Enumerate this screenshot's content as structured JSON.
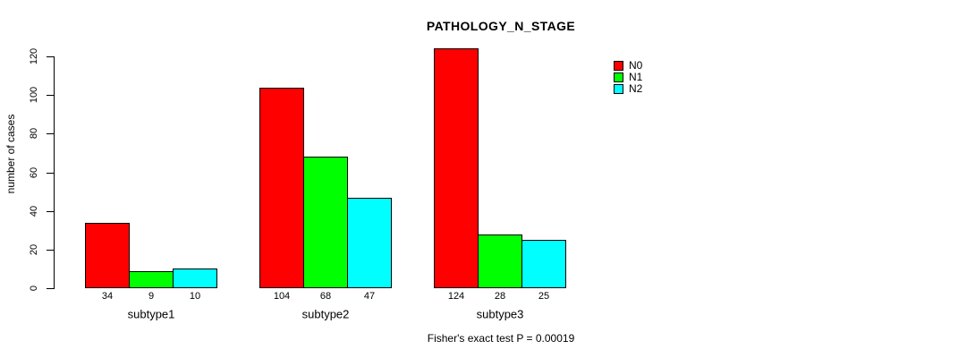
{
  "chart_data": {
    "type": "bar",
    "title": "PATHOLOGY_N_STAGE",
    "categories": [
      "subtype1",
      "subtype2",
      "subtype3"
    ],
    "series": [
      {
        "name": "N0",
        "color": "#ff0000",
        "values": [
          34,
          104,
          124
        ]
      },
      {
        "name": "N1",
        "color": "#00ff00",
        "values": [
          9,
          68,
          28
        ]
      },
      {
        "name": "N2",
        "color": "#00ffff",
        "values": [
          10,
          47,
          25
        ]
      }
    ],
    "value_labels_shown": true,
    "xlabel": "",
    "ylabel": "number of cases",
    "yticks": [
      0,
      20,
      40,
      60,
      80,
      100,
      120
    ],
    "ylim": [
      0,
      120
    ],
    "grid": false,
    "legend": {
      "position": "top-right",
      "entries": [
        "N0",
        "N1",
        "N2"
      ]
    },
    "annotation": "Fisher's exact test P = 0.00019"
  },
  "colors": {
    "background": "#ffffff",
    "axis": "#000000",
    "text": "#000000",
    "bar_border": "#000000"
  }
}
